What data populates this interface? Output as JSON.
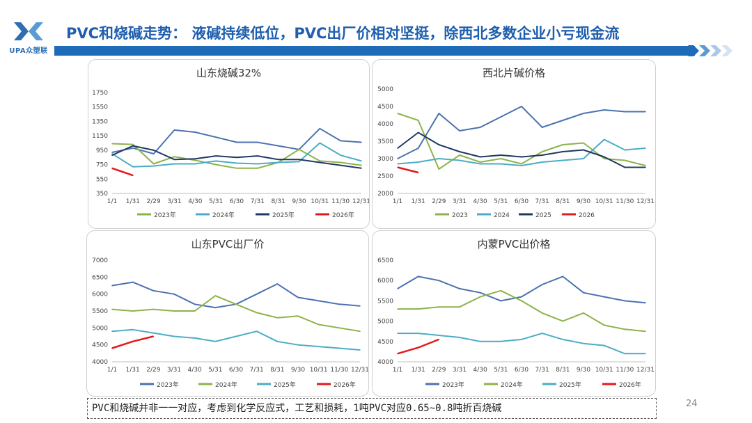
{
  "header": {
    "title": "PVC和烧碱走势： 液碱持续低位，PVC出厂价相对坚挺，除西北多数企业小亏现金流",
    "logo_text": "UPA众塑联",
    "brand_color": "#1e6bb8"
  },
  "footer": {
    "note": "PVC和烧碱并非一一对应，考虑到化学反应式，工艺和损耗，1吨PVC对应0.65~0.8吨折百烧碱",
    "page_number": "24"
  },
  "chart_data": [
    {
      "type": "line",
      "title": "山东烧碱32%",
      "categories": [
        "1/1",
        "1/31",
        "2/29",
        "3/31",
        "4/30",
        "5/31",
        "6/30",
        "7/31",
        "8/31",
        "9/30",
        "10/31",
        "11/30",
        "12/31"
      ],
      "ylim": [
        350,
        1750
      ],
      "yticks": [
        350,
        550,
        750,
        950,
        1150,
        1350,
        1550,
        1750
      ],
      "legend_position": "bottom",
      "series": [
        {
          "name": "2023年",
          "color": "#8cb34a",
          "values": [
            1040,
            1030,
            760,
            860,
            810,
            750,
            700,
            700,
            780,
            960,
            800,
            780,
            740
          ]
        },
        {
          "name": "2024年",
          "color": "#4bacc6",
          "values": [
            900,
            720,
            730,
            760,
            760,
            800,
            770,
            760,
            780,
            790,
            1050,
            880,
            800
          ]
        },
        {
          "name": "2025年",
          "color": "#1f3864",
          "values": [
            880,
            1010,
            950,
            820,
            830,
            870,
            850,
            870,
            820,
            820,
            780,
            740,
            700
          ]
        },
        {
          "name": "2026年",
          "color": "#e31a1c",
          "values": [
            700,
            600,
            null,
            null,
            null,
            null,
            null,
            null,
            null,
            null,
            null,
            null,
            null
          ]
        }
      ],
      "extra_series": [
        {
          "name": "",
          "color": "#4a72b0",
          "values": [
            920,
            980,
            900,
            1230,
            1200,
            1130,
            1060,
            1060,
            1010,
            960,
            1250,
            1080,
            1060
          ]
        }
      ]
    },
    {
      "type": "line",
      "title": "西北片碱价格",
      "categories": [
        "1/1",
        "1/31",
        "2/29",
        "3/31",
        "4/30",
        "5/31",
        "6/30",
        "7/31",
        "8/31",
        "9/30",
        "10/31",
        "11/30",
        "12/31"
      ],
      "ylim": [
        2000,
        5000
      ],
      "yticks": [
        2000,
        2500,
        3000,
        3500,
        4000,
        4500,
        5000
      ],
      "legend_position": "bottom",
      "series": [
        {
          "name": "2023",
          "color": "#8cb34a",
          "values": [
            4300,
            4100,
            2700,
            3100,
            2900,
            3000,
            2850,
            3200,
            3400,
            3450,
            3000,
            2950,
            2800
          ]
        },
        {
          "name": "2024",
          "color": "#4bacc6",
          "values": [
            2850,
            2900,
            3000,
            2950,
            2850,
            2850,
            2800,
            2900,
            2950,
            3000,
            3550,
            3250,
            3300
          ]
        },
        {
          "name": "2025",
          "color": "#1f3864",
          "values": [
            3300,
            3750,
            3400,
            3200,
            3050,
            3100,
            3050,
            3100,
            3200,
            3250,
            3050,
            2750,
            2750
          ]
        },
        {
          "name": "2026",
          "color": "#e31a1c",
          "values": [
            2750,
            2600,
            null,
            null,
            null,
            null,
            null,
            null,
            null,
            null,
            null,
            null,
            null
          ]
        }
      ],
      "extra_series": [
        {
          "name": "",
          "color": "#4a72b0",
          "values": [
            3000,
            3300,
            4300,
            3800,
            3900,
            4200,
            4500,
            3900,
            4100,
            4300,
            4400,
            4350,
            4350
          ]
        }
      ]
    },
    {
      "type": "line",
      "title": "山东PVC出厂价",
      "categories": [
        "1/1",
        "1/31",
        "2/29",
        "3/31",
        "4/30",
        "5/31",
        "6/30",
        "7/31",
        "8/31",
        "9/30",
        "10/31",
        "11/30",
        "12/31"
      ],
      "ylim": [
        4000,
        7000
      ],
      "yticks": [
        4000,
        4500,
        5000,
        5500,
        6000,
        6500,
        7000
      ],
      "legend_position": "bottom",
      "series": [
        {
          "name": "2023年",
          "color": "#4a72b0",
          "values": [
            6250,
            6350,
            6100,
            6000,
            5700,
            5600,
            5700,
            6000,
            6300,
            5900,
            5800,
            5700,
            5650
          ]
        },
        {
          "name": "2024年",
          "color": "#8cb34a",
          "values": [
            5550,
            5500,
            5550,
            5500,
            5500,
            5950,
            5700,
            5450,
            5300,
            5350,
            5100,
            5000,
            4900
          ]
        },
        {
          "name": "2025年",
          "color": "#4bacc6",
          "values": [
            4900,
            4950,
            4850,
            4750,
            4700,
            4600,
            4750,
            4900,
            4600,
            4500,
            4450,
            4400,
            4350
          ]
        },
        {
          "name": "2026年",
          "color": "#e31a1c",
          "values": [
            4400,
            4600,
            4750,
            null,
            null,
            null,
            null,
            null,
            null,
            null,
            null,
            null,
            null
          ]
        }
      ]
    },
    {
      "type": "line",
      "title": "内蒙PVC出价格",
      "categories": [
        "1/1",
        "1/31",
        "2/29",
        "3/31",
        "4/30",
        "5/31",
        "6/30",
        "7/31",
        "8/31",
        "9/30",
        "10/31",
        "11/30",
        "12/31"
      ],
      "ylim": [
        4000,
        6500
      ],
      "yticks": [
        4000,
        4500,
        5000,
        5500,
        6000,
        6500
      ],
      "legend_position": "bottom",
      "series": [
        {
          "name": "2023年",
          "color": "#4a72b0",
          "values": [
            5800,
            6100,
            6000,
            5800,
            5700,
            5500,
            5600,
            5900,
            6100,
            5700,
            5600,
            5500,
            5450
          ]
        },
        {
          "name": "2024年",
          "color": "#8cb34a",
          "values": [
            5300,
            5300,
            5350,
            5350,
            5600,
            5750,
            5500,
            5200,
            5000,
            5200,
            4900,
            4800,
            4750
          ]
        },
        {
          "name": "2025年",
          "color": "#4bacc6",
          "values": [
            4700,
            4700,
            4650,
            4600,
            4500,
            4500,
            4550,
            4700,
            4550,
            4450,
            4400,
            4200,
            4200
          ]
        },
        {
          "name": "2026年",
          "color": "#e31a1c",
          "values": [
            4200,
            4350,
            4550,
            null,
            null,
            null,
            null,
            null,
            null,
            null,
            null,
            null,
            null
          ]
        }
      ]
    }
  ]
}
